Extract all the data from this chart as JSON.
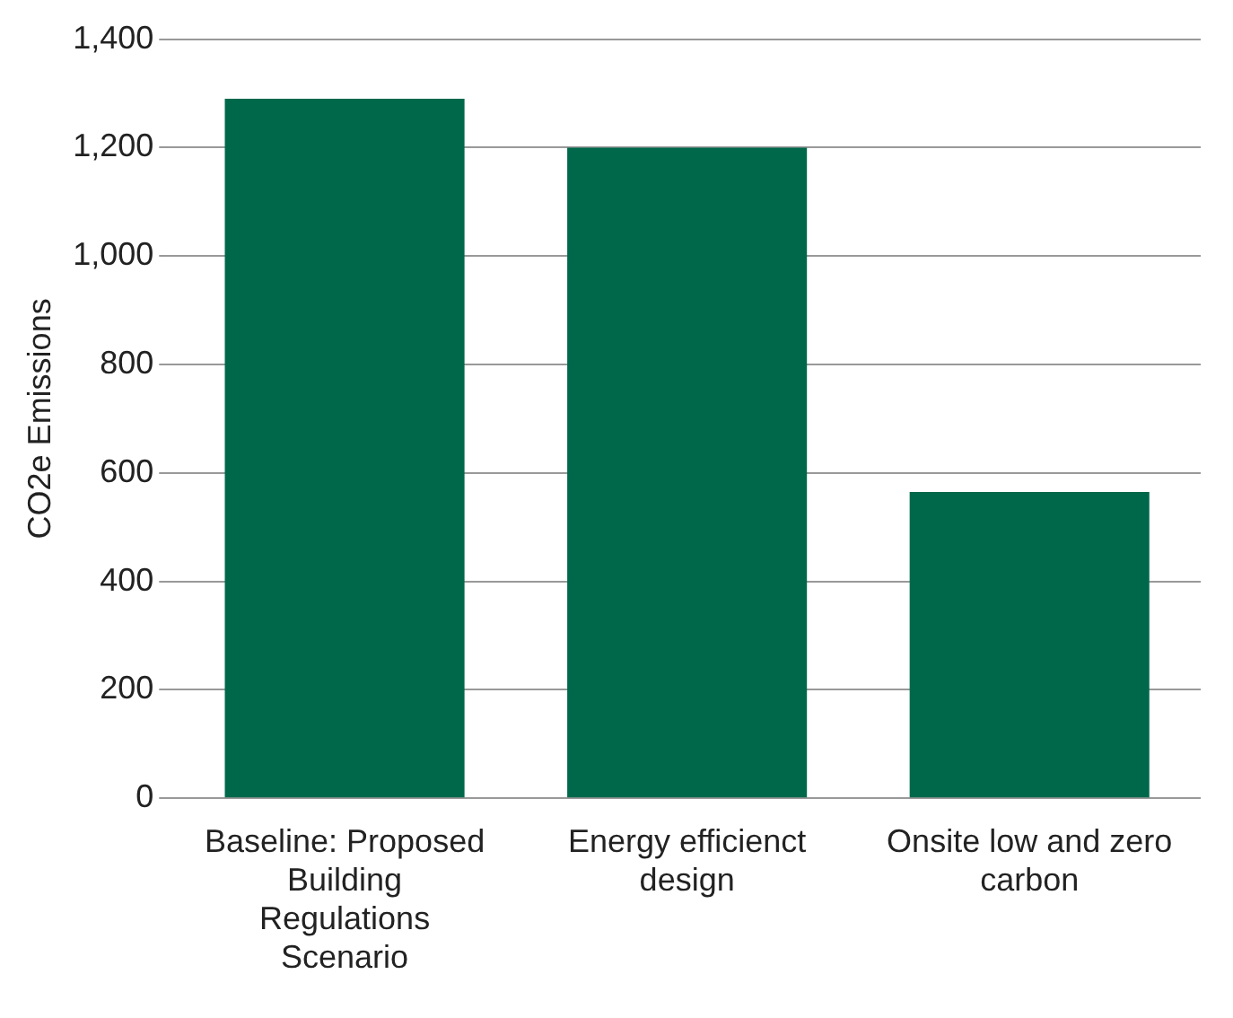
{
  "chart_data": {
    "type": "bar",
    "ylabel": "CO2e Emissions",
    "categories": [
      "Baseline: Proposed Building Regulations Scenario",
      "Energy efficienct design",
      "Onsite low and zero carbon"
    ],
    "values": [
      1290,
      1200,
      565
    ],
    "color": "#00684a",
    "ylim": [
      0,
      1400
    ],
    "yticks": [
      0,
      200,
      400,
      600,
      800,
      {
        "value": 1000,
        "label": "1,000"
      },
      {
        "value": 1200,
        "label": "1,200"
      },
      {
        "value": 1400,
        "label": "1,400"
      }
    ],
    "grid": "y",
    "legend": false
  }
}
